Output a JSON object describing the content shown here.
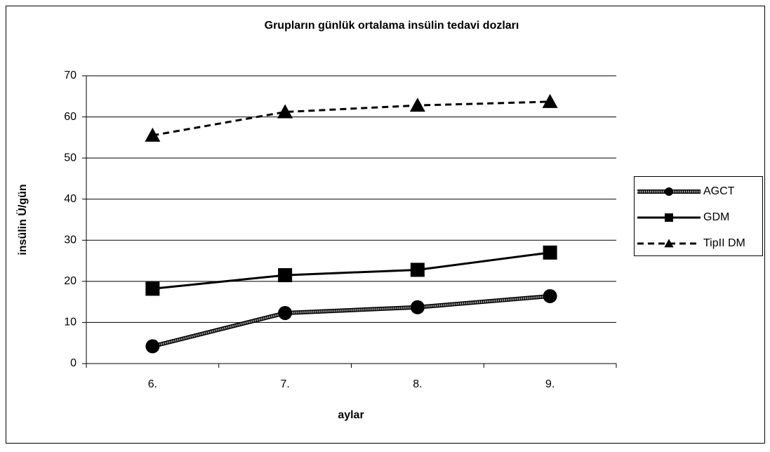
{
  "chart_data": {
    "type": "line",
    "title": "Grupların günlük ortalama insülin tedavi dozları",
    "x_label": "aylar",
    "y_label": "insülin Ü/gün",
    "categories": [
      "6.",
      "7.",
      "8.",
      "9."
    ],
    "series": [
      {
        "name": "AGCT",
        "color": "#8c8c8c",
        "marker": "circle",
        "line_style": "striped",
        "values": [
          4.2,
          12.3,
          13.7,
          16.4
        ]
      },
      {
        "name": "GDM",
        "color": "#000000",
        "marker": "square",
        "line_style": "solid",
        "values": [
          18.2,
          21.5,
          22.8,
          27
        ]
      },
      {
        "name": "TipII DM",
        "color": "#000000",
        "marker": "triangle",
        "line_style": "dashed",
        "values": [
          55.5,
          61.2,
          62.8,
          63.7
        ]
      }
    ],
    "ylim": [
      0,
      70
    ],
    "yticks": [
      0,
      10,
      20,
      30,
      40,
      50,
      60,
      70
    ],
    "grid": true,
    "legend": "right"
  }
}
